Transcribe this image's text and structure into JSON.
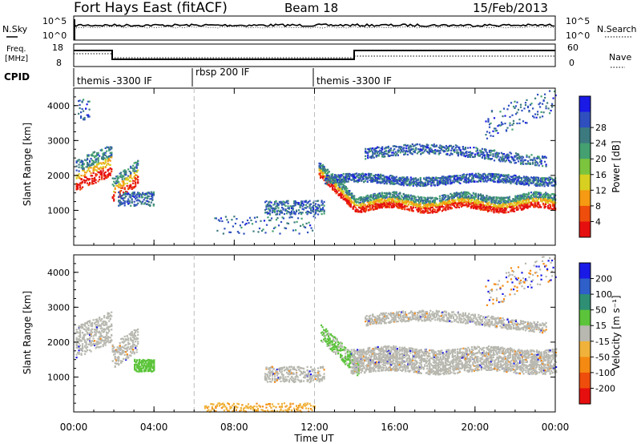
{
  "header": {
    "site_title": "Fort Hays East (fitACF)",
    "beam": "Beam 18",
    "date": "15/Feb/2013"
  },
  "top_panels": {
    "nsky_label": "N.Sky",
    "nsky_ticks": [
      "10^5",
      "10^0"
    ],
    "nsearch_label": "N.Search",
    "nsearch_ticks": [
      "10^5",
      "10^0"
    ],
    "freq_label_line1": "Freq.",
    "freq_label_line2": "[MHz]",
    "freq_ticks": [
      "18",
      "8"
    ],
    "nave_label": "Nave",
    "nave_ticks": [
      "60",
      "0"
    ],
    "cpid_label": "CPID",
    "cpid_segments": [
      {
        "label": "themis -3300 IF",
        "start_hour": 0,
        "end_hour": 6
      },
      {
        "label": "rbsp 200 IF",
        "start_hour": 6,
        "end_hour": 12
      },
      {
        "label": "themis -3300 IF",
        "start_hour": 12,
        "end_hour": 24
      }
    ]
  },
  "chart_data": [
    {
      "type": "heatmap",
      "name": "power-panel",
      "ylabel": "Slant Range [km]",
      "xlim": [
        0,
        24
      ],
      "ylim": [
        0,
        4500
      ],
      "yticks": [
        "1000",
        "2000",
        "3000",
        "4000"
      ],
      "colorbar_label": "Power [dB]",
      "colorbar_ticks": [
        "4",
        "8",
        "12",
        "16",
        "20",
        "24",
        "28"
      ],
      "colorbar_colors": [
        "#1a1ae6",
        "#2f4fbf",
        "#3c7a80",
        "#44a070",
        "#7cc43e",
        "#d8d020",
        "#f59a12",
        "#ee4d0c",
        "#e60f0f"
      ],
      "dashed_hours": [
        6,
        12
      ]
    },
    {
      "type": "heatmap",
      "name": "velocity-panel",
      "ylabel": "Slant Range [km]",
      "xlim": [
        0,
        24
      ],
      "ylim": [
        0,
        4500
      ],
      "yticks": [
        "1000",
        "2000",
        "3000",
        "4000"
      ],
      "colorbar_label": "Velocity [m s⁻¹]",
      "colorbar_ticks": [
        "200",
        "100",
        "50",
        "15",
        "-15",
        "-50",
        "-100",
        "-200"
      ],
      "colorbar_colors": [
        "#1a1ae6",
        "#2f5fc8",
        "#2e8f74",
        "#5bc43a",
        "#b8b8b0",
        "#f0b23a",
        "#f58a12",
        "#ee4d0c",
        "#e60f0f"
      ],
      "dashed_hours": [
        6,
        12
      ]
    }
  ],
  "x_axis": {
    "ticks": [
      "00:00",
      "04:00",
      "08:00",
      "12:00",
      "16:00",
      "20:00",
      "00:00"
    ],
    "label": "Time UT"
  }
}
